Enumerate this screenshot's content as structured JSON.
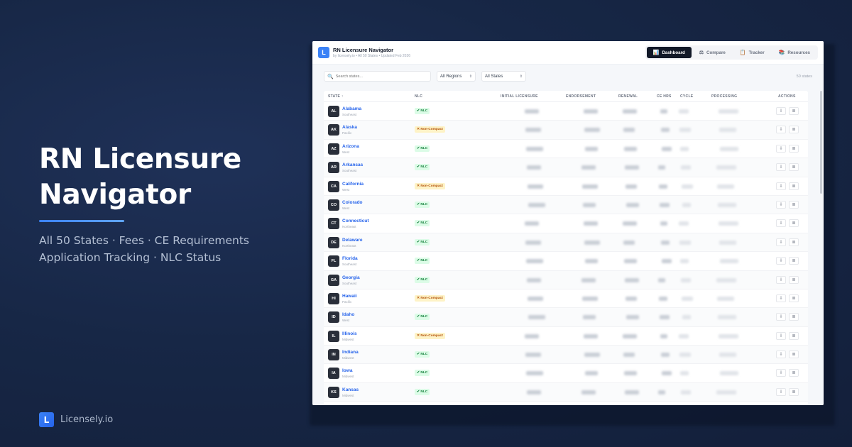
{
  "hero": {
    "title_line1": "RN Licensure",
    "title_line2": "Navigator",
    "subtitle_line1": "All 50 States · Fees · CE Requirements",
    "subtitle_line2": "Application Tracking · NLC Status"
  },
  "brand": {
    "logo_letter": "L",
    "name": "Licensely.io"
  },
  "app": {
    "logo_letter": "L",
    "title": "RN Licensure Navigator",
    "subtitle": "by licensely.io • All 50 States • Updated Feb 2026",
    "nav": [
      {
        "label": "Dashboard",
        "icon": "📊",
        "active": true
      },
      {
        "label": "Compare",
        "icon": "⚖",
        "active": false
      },
      {
        "label": "Tracker",
        "icon": "📋",
        "active": false
      },
      {
        "label": "Resources",
        "icon": "📚",
        "active": false
      }
    ],
    "search": {
      "placeholder": "Search states..."
    },
    "region_filter": "All Regions",
    "state_filter": "All States",
    "count_label": "50 states",
    "columns": {
      "state": "STATE ↑",
      "nlc": "NLC",
      "initial": "INITIAL LICENSURE",
      "endorsement": "ENDORSEMENT",
      "renewal": "RENEWAL",
      "ce_hrs": "CE HRS",
      "cycle": "CYCLE",
      "processing": "PROCESSING",
      "actions": "ACTIONS"
    },
    "badge_labels": {
      "nlc": "✔ NLC",
      "non_compact": "✕ Non-Compact"
    },
    "rows": [
      {
        "abbr": "AL",
        "name": "Alabama",
        "region": "Southeast",
        "nlc": true
      },
      {
        "abbr": "AK",
        "name": "Alaska",
        "region": "Pacific",
        "nlc": false
      },
      {
        "abbr": "AZ",
        "name": "Arizona",
        "region": "West",
        "nlc": true
      },
      {
        "abbr": "AR",
        "name": "Arkansas",
        "region": "Southeast",
        "nlc": true
      },
      {
        "abbr": "CA",
        "name": "California",
        "region": "West",
        "nlc": false
      },
      {
        "abbr": "CO",
        "name": "Colorado",
        "region": "West",
        "nlc": true
      },
      {
        "abbr": "CT",
        "name": "Connecticut",
        "region": "Northeast",
        "nlc": true
      },
      {
        "abbr": "DE",
        "name": "Delaware",
        "region": "Northeast",
        "nlc": true
      },
      {
        "abbr": "FL",
        "name": "Florida",
        "region": "Southeast",
        "nlc": true
      },
      {
        "abbr": "GA",
        "name": "Georgia",
        "region": "Southeast",
        "nlc": true
      },
      {
        "abbr": "HI",
        "name": "Hawaii",
        "region": "Pacific",
        "nlc": false
      },
      {
        "abbr": "ID",
        "name": "Idaho",
        "region": "West",
        "nlc": true
      },
      {
        "abbr": "IL",
        "name": "Illinois",
        "region": "Midwest",
        "nlc": false
      },
      {
        "abbr": "IN",
        "name": "Indiana",
        "region": "Midwest",
        "nlc": true
      },
      {
        "abbr": "IA",
        "name": "Iowa",
        "region": "Midwest",
        "nlc": true
      },
      {
        "abbr": "KS",
        "name": "Kansas",
        "region": "Midwest",
        "nlc": true
      }
    ]
  },
  "colors": {
    "accent": "#3b82f6",
    "link": "#2563eb",
    "nlc_bg": "#dcfce7",
    "nlc_fg": "#15803d",
    "noncompact_bg": "#fef3c7",
    "noncompact_fg": "#b45309"
  }
}
